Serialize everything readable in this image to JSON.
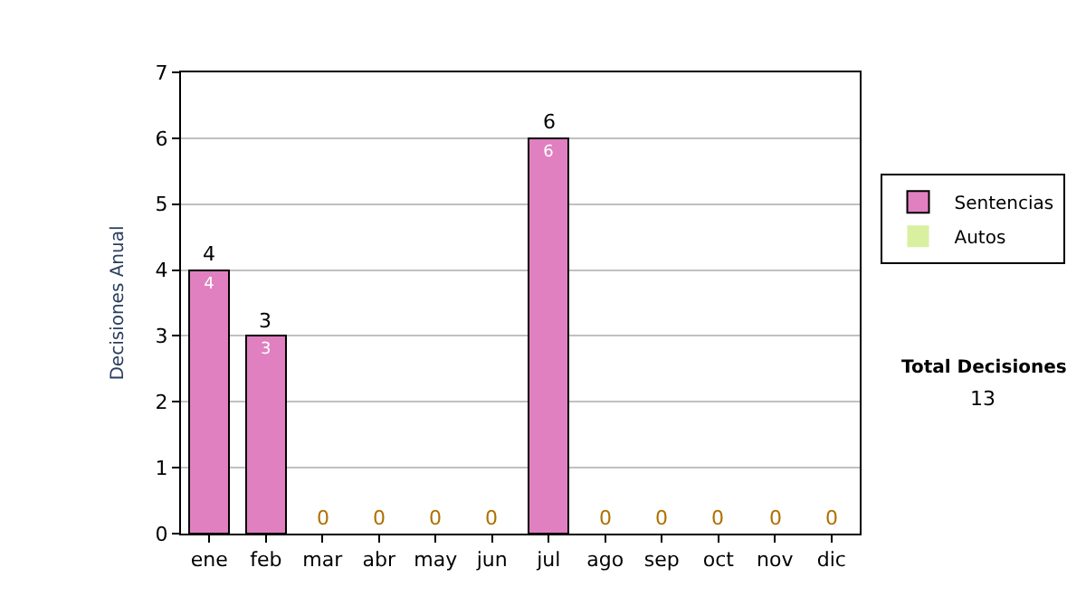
{
  "chart_data": {
    "type": "bar",
    "stacked": true,
    "ylabel": "Decisiones Anual",
    "categories": [
      "ene",
      "feb",
      "mar",
      "abr",
      "may",
      "jun",
      "jul",
      "ago",
      "sep",
      "oct",
      "nov",
      "dic"
    ],
    "series": [
      {
        "name": "Sentencias",
        "color": "#e080c0",
        "values": [
          4,
          3,
          0,
          0,
          0,
          0,
          6,
          0,
          0,
          0,
          0,
          0
        ],
        "value_labels": [
          "4",
          "3",
          null,
          null,
          null,
          null,
          "6",
          null,
          null,
          null,
          null,
          null
        ]
      },
      {
        "name": "Autos",
        "color": "#d8f0a0",
        "values": [
          0,
          0,
          0,
          0,
          0,
          0,
          0,
          0,
          0,
          0,
          0,
          0
        ]
      }
    ],
    "totals": [
      "4",
      "3",
      "0",
      "0",
      "0",
      "0",
      "6",
      "0",
      "0",
      "0",
      "0",
      "0"
    ],
    "ylim": [
      0,
      7
    ],
    "yticks": [
      0,
      1,
      2,
      3,
      4,
      5,
      6,
      7
    ],
    "grid": "y",
    "legend": "right",
    "annotations": [
      "Total Decisiones",
      "13"
    ]
  }
}
